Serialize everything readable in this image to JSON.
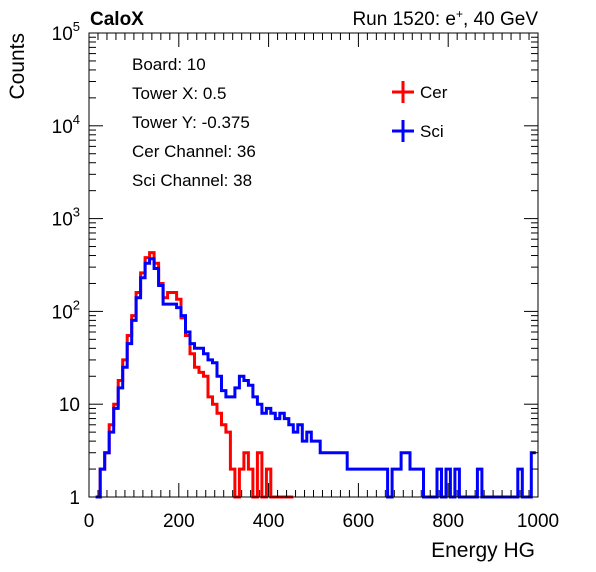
{
  "header": {
    "experiment": "CaloX",
    "run_info_prefix": "Run 1520: e",
    "run_info_sup": "+",
    "run_info_suffix": ", 40 GeV"
  },
  "info_box": [
    "Board: 10",
    "Tower X: 0.5",
    "Tower Y: -0.375",
    "Cer Channel: 36",
    "Sci Channel: 38"
  ],
  "colors": {
    "cer": "#ff0000",
    "sci": "#0000ff",
    "axis": "#000000"
  },
  "chart_data": {
    "type": "line",
    "title": "",
    "xlabel": "Energy HG",
    "ylabel": "Counts",
    "xlim": [
      0,
      1000
    ],
    "ylim": [
      1,
      100000
    ],
    "yscale": "log",
    "grid": false,
    "legend_position": "top-right",
    "x_ticks": [
      "0",
      "200",
      "400",
      "600",
      "800",
      "1000"
    ],
    "y_ticks": [
      {
        "base": "1",
        "exp": ""
      },
      {
        "base": "10",
        "exp": ""
      },
      {
        "base": "10",
        "exp": "2"
      },
      {
        "base": "10",
        "exp": "3"
      },
      {
        "base": "10",
        "exp": "4"
      },
      {
        "base": "10",
        "exp": "5"
      }
    ],
    "series": [
      {
        "name": "Cer",
        "color": "#ff0000",
        "x": [
          20,
          30,
          40,
          50,
          60,
          70,
          80,
          90,
          100,
          110,
          120,
          130,
          140,
          150,
          160,
          170,
          180,
          190,
          200,
          210,
          220,
          230,
          240,
          250,
          260,
          270,
          280,
          290,
          300,
          310,
          320,
          330,
          340,
          350,
          360,
          370,
          380,
          390,
          400,
          410,
          420,
          430,
          440,
          450
        ],
        "y": [
          1,
          2,
          3,
          6,
          10,
          18,
          30,
          55,
          90,
          160,
          260,
          380,
          430,
          330,
          200,
          140,
          160,
          160,
          135,
          85,
          55,
          35,
          25,
          22,
          20,
          12,
          10,
          8,
          6,
          5,
          2,
          1,
          2,
          3,
          2,
          1,
          3,
          1,
          2,
          1,
          1,
          1,
          1,
          1
        ]
      },
      {
        "name": "Sci",
        "color": "#0000ff",
        "x": [
          20,
          30,
          40,
          50,
          60,
          70,
          80,
          90,
          100,
          110,
          120,
          130,
          140,
          150,
          160,
          170,
          180,
          190,
          200,
          210,
          220,
          230,
          240,
          250,
          260,
          270,
          280,
          290,
          300,
          310,
          320,
          330,
          340,
          350,
          360,
          370,
          380,
          390,
          400,
          410,
          420,
          430,
          440,
          450,
          460,
          470,
          480,
          490,
          500,
          510,
          520,
          530,
          540,
          550,
          560,
          570,
          580,
          590,
          600,
          610,
          620,
          630,
          640,
          650,
          660,
          670,
          680,
          690,
          700,
          710,
          720,
          730,
          740,
          750,
          760,
          770,
          780,
          790,
          800,
          810,
          820,
          830,
          840,
          850,
          860,
          870,
          880,
          890,
          900,
          910,
          920,
          930,
          940,
          950,
          960,
          970,
          980,
          990
        ],
        "y": [
          1,
          2,
          3,
          5,
          9,
          15,
          25,
          45,
          80,
          140,
          230,
          330,
          370,
          290,
          190,
          120,
          120,
          120,
          110,
          90,
          60,
          45,
          40,
          40,
          35,
          30,
          28,
          20,
          14,
          12,
          12,
          15,
          20,
          18,
          16,
          12,
          10,
          8,
          9,
          8,
          7,
          8,
          7,
          6,
          5,
          6,
          4,
          5,
          4,
          4,
          3,
          3,
          3,
          3,
          3,
          3,
          2,
          2,
          2,
          2,
          2,
          2,
          2,
          2,
          2,
          1,
          2,
          2,
          3,
          3,
          2,
          2,
          2,
          1,
          1,
          1,
          2,
          1,
          2,
          1,
          2,
          1,
          1,
          1,
          1,
          2,
          1,
          1,
          1,
          1,
          1,
          1,
          1,
          1,
          2,
          1,
          1,
          3
        ]
      }
    ]
  }
}
